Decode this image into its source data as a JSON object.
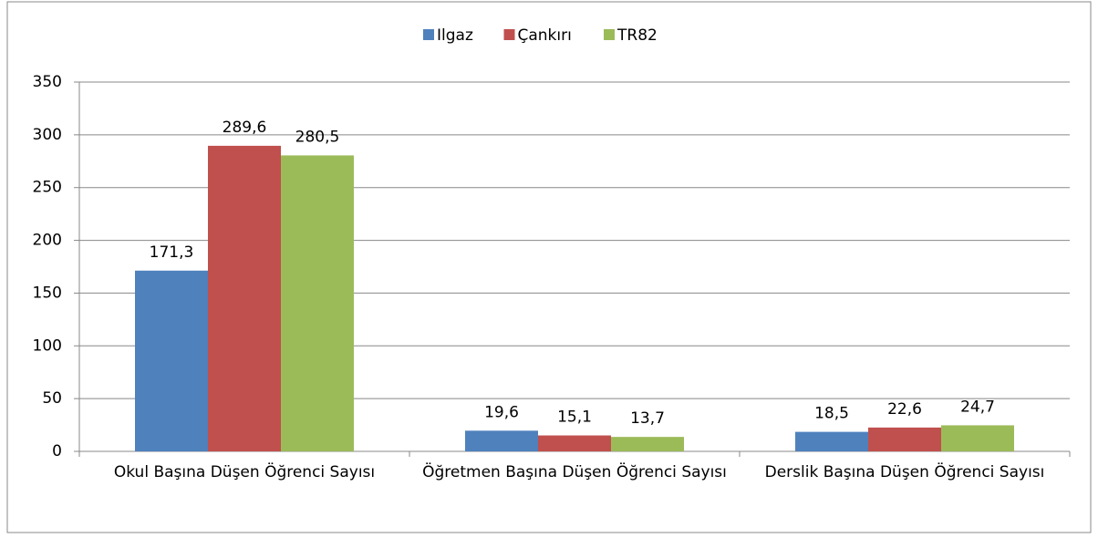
{
  "chart_data": {
    "type": "bar",
    "categories": [
      "Okul Başına Düşen Öğrenci Sayısı",
      "Öğretmen Başına Düşen Öğrenci Sayısı",
      "Derslik Başına Düşen Öğrenci Sayısı"
    ],
    "series": [
      {
        "name": "Ilgaz",
        "color": "#4f81bd",
        "values": [
          171.3,
          19.6,
          18.5
        ],
        "value_labels": [
          "171,3",
          "19,6",
          "18,5"
        ]
      },
      {
        "name": "Çankırı",
        "color": "#c0504d",
        "values": [
          289.6,
          15.1,
          22.6
        ],
        "value_labels": [
          "289,6",
          "15,1",
          "22,6"
        ]
      },
      {
        "name": "TR82",
        "color": "#9bbb59",
        "values": [
          280.5,
          13.7,
          24.7
        ],
        "value_labels": [
          "280,5",
          "13,7",
          "24,7"
        ]
      }
    ],
    "ylim": [
      0,
      350
    ],
    "yticks": [
      0,
      50,
      100,
      150,
      200,
      250,
      300,
      350
    ],
    "grid": true,
    "legend": "top"
  }
}
